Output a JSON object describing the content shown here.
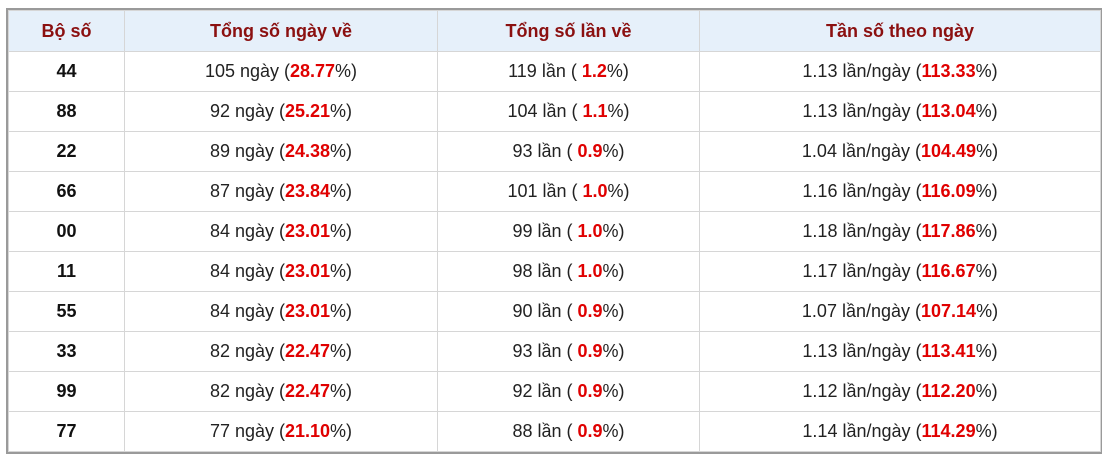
{
  "table": {
    "headers": [
      "Bộ số",
      "Tổng số ngày về",
      "Tổng số lần về",
      "Tần số theo ngày"
    ],
    "rows": [
      [
        "44",
        {
          "pre": "105 ngày (",
          "pct": "28.77",
          "post": "%)"
        },
        {
          "pre": "119 lần ( ",
          "pct": "1.2",
          "post": "%)"
        },
        {
          "pre": "1.13 lần/ngày (",
          "pct": "113.33",
          "post": "%)"
        }
      ],
      [
        "88",
        {
          "pre": "92 ngày (",
          "pct": "25.21",
          "post": "%)"
        },
        {
          "pre": "104 lần ( ",
          "pct": "1.1",
          "post": "%)"
        },
        {
          "pre": "1.13 lần/ngày (",
          "pct": "113.04",
          "post": "%)"
        }
      ],
      [
        "22",
        {
          "pre": "89 ngày (",
          "pct": "24.38",
          "post": "%)"
        },
        {
          "pre": "93 lần ( ",
          "pct": "0.9",
          "post": "%)"
        },
        {
          "pre": "1.04 lần/ngày (",
          "pct": "104.49",
          "post": "%)"
        }
      ],
      [
        "66",
        {
          "pre": "87 ngày (",
          "pct": "23.84",
          "post": "%)"
        },
        {
          "pre": "101 lần ( ",
          "pct": "1.0",
          "post": "%)"
        },
        {
          "pre": "1.16 lần/ngày (",
          "pct": "116.09",
          "post": "%)"
        }
      ],
      [
        "00",
        {
          "pre": "84 ngày (",
          "pct": "23.01",
          "post": "%)"
        },
        {
          "pre": "99 lần ( ",
          "pct": "1.0",
          "post": "%)"
        },
        {
          "pre": "1.18 lần/ngày (",
          "pct": "117.86",
          "post": "%)"
        }
      ],
      [
        "11",
        {
          "pre": "84 ngày (",
          "pct": "23.01",
          "post": "%)"
        },
        {
          "pre": "98 lần ( ",
          "pct": "1.0",
          "post": "%)"
        },
        {
          "pre": "1.17 lần/ngày (",
          "pct": "116.67",
          "post": "%)"
        }
      ],
      [
        "55",
        {
          "pre": "84 ngày (",
          "pct": "23.01",
          "post": "%)"
        },
        {
          "pre": "90 lần ( ",
          "pct": "0.9",
          "post": "%)"
        },
        {
          "pre": "1.07 lần/ngày (",
          "pct": "107.14",
          "post": "%)"
        }
      ],
      [
        "33",
        {
          "pre": "82 ngày (",
          "pct": "22.47",
          "post": "%)"
        },
        {
          "pre": "93 lần ( ",
          "pct": "0.9",
          "post": "%)"
        },
        {
          "pre": "1.13 lần/ngày (",
          "pct": "113.41",
          "post": "%)"
        }
      ],
      [
        "99",
        {
          "pre": "82 ngày (",
          "pct": "22.47",
          "post": "%)"
        },
        {
          "pre": "92 lần ( ",
          "pct": "0.9",
          "post": "%)"
        },
        {
          "pre": "1.12 lần/ngày (",
          "pct": "112.20",
          "post": "%)"
        }
      ],
      [
        "77",
        {
          "pre": "77 ngày (",
          "pct": "21.10",
          "post": "%)"
        },
        {
          "pre": "88 lần ( ",
          "pct": "0.9",
          "post": "%)"
        },
        {
          "pre": "1.14 lần/ngày (",
          "pct": "114.29",
          "post": "%)"
        }
      ]
    ]
  }
}
